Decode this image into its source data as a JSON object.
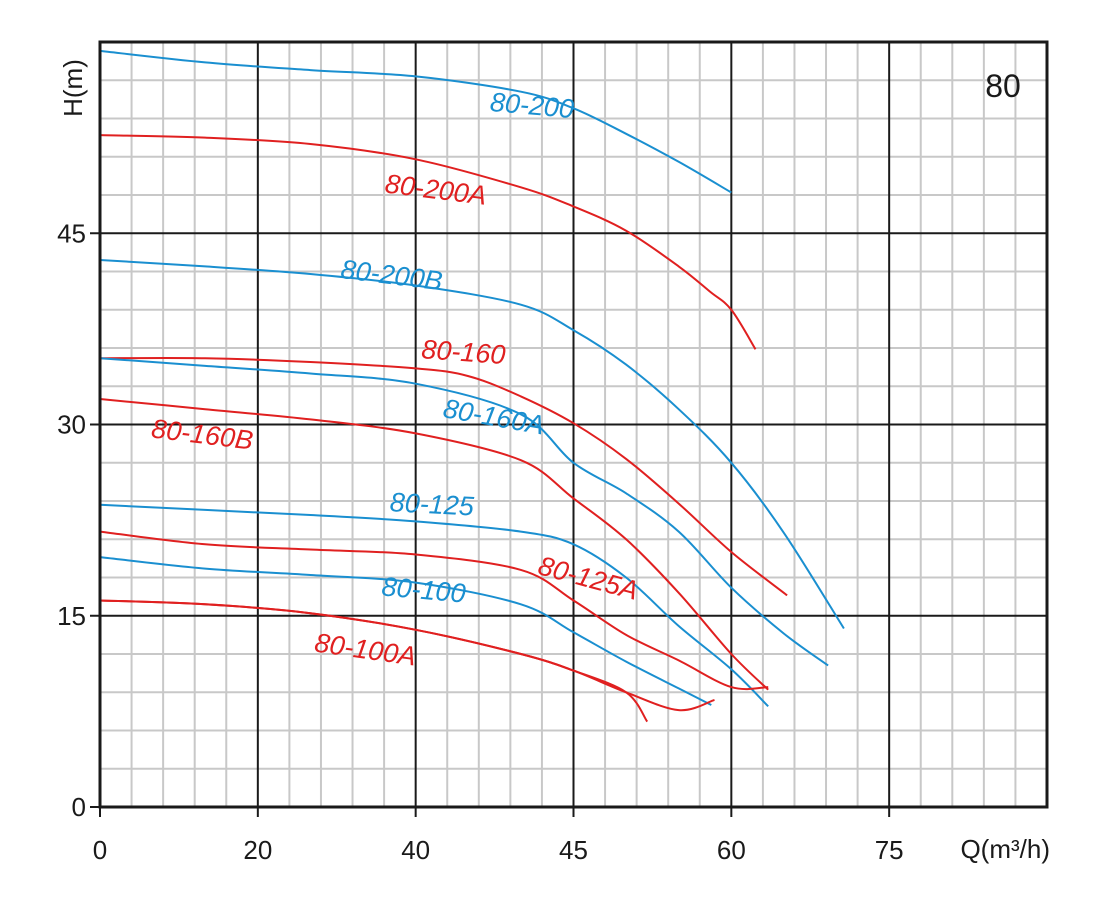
{
  "chart_data": {
    "type": "line",
    "title": "",
    "corner_label": "80",
    "xlabel": "Q(m³/h)",
    "ylabel": "H(m)",
    "xlim": [
      0,
      90
    ],
    "ylim": [
      0,
      60
    ],
    "xticks": [
      "0",
      "20",
      "40",
      "45",
      "60",
      "75"
    ],
    "yticks": [
      "0",
      "15",
      "30",
      "45"
    ],
    "grid": true,
    "legend": "none",
    "series": [
      {
        "name": "80-200",
        "color": "#1a8fd0",
        "label_at": [
          37,
          54.6
        ],
        "label_rot": 5,
        "x": [
          0,
          10,
          20,
          30,
          40,
          45,
          50,
          55,
          60
        ],
        "y": [
          59.3,
          58.4,
          57.8,
          57.3,
          56.1,
          54.8,
          52.8,
          50.6,
          48.2
        ]
      },
      {
        "name": "80-200A",
        "color": "#e02020",
        "label_at": [
          27,
          48.2
        ],
        "label_rot": 7,
        "x": [
          0,
          10,
          20,
          30,
          40,
          45,
          50,
          55,
          58,
          60,
          62.3
        ],
        "y": [
          52.7,
          52.5,
          52.0,
          50.8,
          48.6,
          47.1,
          45.2,
          42.4,
          40.4,
          39.0,
          35.9
        ]
      },
      {
        "name": "80-200B",
        "color": "#1a8fd0",
        "label_at": [
          22.8,
          41.5
        ],
        "label_rot": 7,
        "x": [
          0,
          10,
          20,
          30,
          40,
          45,
          50,
          55,
          60,
          65,
          70.7
        ],
        "y": [
          42.9,
          42.4,
          41.8,
          40.9,
          39.4,
          37.4,
          34.7,
          31.2,
          27.0,
          21.5,
          14.0
        ]
      },
      {
        "name": "80-160",
        "color": "#e02020",
        "label_at": [
          30.5,
          35.2
        ],
        "label_rot": 4,
        "x": [
          0,
          10,
          20,
          30,
          35,
          40,
          45,
          50,
          55,
          60,
          65.3
        ],
        "y": [
          35.2,
          35.2,
          34.9,
          34.4,
          33.8,
          32.2,
          30.1,
          27.3,
          23.8,
          20.0,
          16.6
        ]
      },
      {
        "name": "80-160A",
        "color": "#1a8fd0",
        "label_at": [
          32.5,
          30.6
        ],
        "label_rot": 10,
        "x": [
          0,
          10,
          20,
          30,
          40,
          45,
          50,
          55,
          60,
          65,
          69.2
        ],
        "y": [
          35.2,
          34.6,
          34.0,
          33.2,
          30.8,
          27.0,
          24.6,
          21.6,
          17.2,
          13.6,
          11.1
        ]
      },
      {
        "name": "80-160B",
        "color": "#e02020",
        "label_at": [
          4.8,
          29.0
        ],
        "label_rot": 7,
        "x": [
          0,
          10,
          20,
          30,
          40,
          45,
          50,
          55,
          60,
          63.5
        ],
        "y": [
          32.0,
          31.2,
          30.4,
          29.3,
          27.2,
          24.2,
          21.0,
          16.8,
          12.0,
          9.2
        ]
      },
      {
        "name": "80-125",
        "color": "#1a8fd0",
        "label_at": [
          27.5,
          23.2
        ],
        "label_rot": 3,
        "x": [
          0,
          10,
          20,
          30,
          40,
          45,
          50,
          55,
          60,
          63.5
        ],
        "y": [
          23.7,
          23.3,
          22.9,
          22.4,
          21.6,
          20.6,
          18.0,
          14.2,
          10.8,
          7.9
        ]
      },
      {
        "name": "80-125A",
        "color": "#e02020",
        "label_at": [
          41.5,
          18.3
        ],
        "label_rot": 15,
        "x": [
          0,
          10,
          20,
          30,
          40,
          45,
          50,
          55,
          60,
          63.5
        ],
        "y": [
          21.6,
          20.6,
          20.2,
          19.8,
          18.6,
          16.2,
          13.5,
          11.5,
          9.4,
          9.4
        ]
      },
      {
        "name": "80-100",
        "color": "#1a8fd0",
        "label_at": [
          26.7,
          16.6
        ],
        "label_rot": 5,
        "x": [
          0,
          10,
          20,
          30,
          40,
          45,
          50,
          55,
          58.1
        ],
        "y": [
          19.6,
          18.7,
          18.2,
          17.6,
          15.9,
          13.7,
          11.4,
          9.3,
          8.0
        ]
      },
      {
        "name": "80-100A",
        "color": "#e02020",
        "label_at": [
          20.3,
          12.2
        ],
        "label_rot": 8,
        "x": [
          0,
          10,
          20,
          30,
          40,
          45,
          50,
          55,
          58.4
        ],
        "y": [
          16.2,
          15.9,
          15.2,
          13.9,
          12.0,
          10.7,
          9.0,
          7.6,
          8.4
        ]
      },
      {
        "name": "",
        "color": "#e02020",
        "x": [
          0,
          10,
          20,
          30,
          40,
          45,
          50,
          52
        ],
        "y": [
          16.2,
          15.9,
          15.2,
          13.9,
          12.0,
          10.7,
          9.0,
          6.7
        ]
      }
    ]
  }
}
